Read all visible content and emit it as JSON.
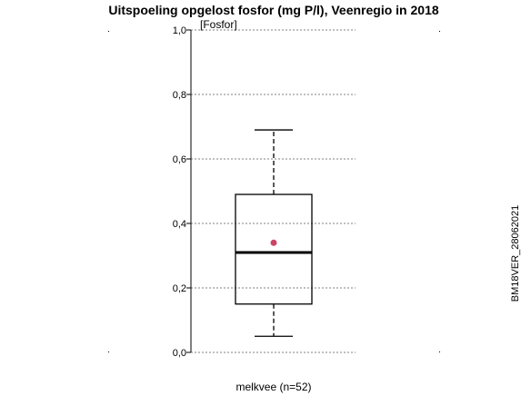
{
  "chart_data": {
    "type": "boxplot",
    "title": "Uitspoeling opgelost fosfor (mg P/l), Veenregio in 2018",
    "ylabel": "[Fosfor]",
    "side_label": "BM18VER_28062021",
    "ylim": [
      0,
      1.0
    ],
    "yticks": [
      {
        "value": 0.0,
        "label": "0,0"
      },
      {
        "value": 0.2,
        "label": "0,2"
      },
      {
        "value": 0.4,
        "label": "0,4"
      },
      {
        "value": 0.6,
        "label": "0,6"
      },
      {
        "value": 0.8,
        "label": "0,8"
      },
      {
        "value": 1.0,
        "label": "1,0"
      }
    ],
    "grid": true,
    "categories": [
      "melkvee (n=52)"
    ],
    "boxes": [
      {
        "category": "melkvee (n=52)",
        "whisker_low": 0.05,
        "q1": 0.15,
        "median": 0.31,
        "q3": 0.49,
        "whisker_high": 0.69,
        "mean": 0.34
      }
    ],
    "colors": {
      "mean_point": "#cc4466",
      "box": "#000000",
      "grid": "#808080"
    }
  }
}
